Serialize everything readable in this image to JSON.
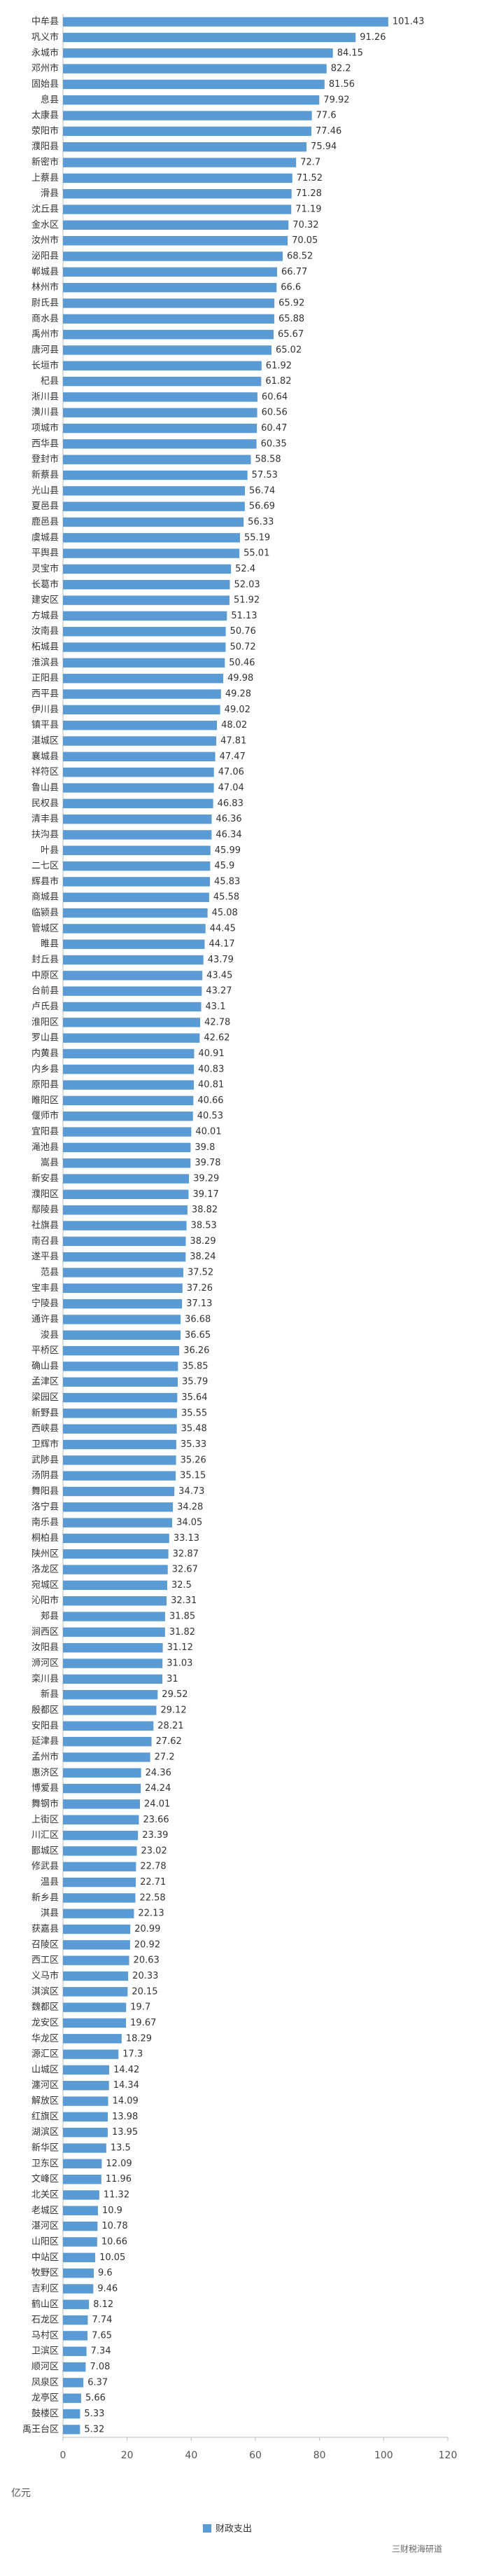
{
  "chart_data": {
    "type": "bar",
    "orientation": "horizontal",
    "categories": [
      "中牟县",
      "巩义市",
      "永城市",
      "邓州市",
      "固始县",
      "息县",
      "太康县",
      "荥阳市",
      "濮阳县",
      "新密市",
      "上蔡县",
      "滑县",
      "沈丘县",
      "金水区",
      "汝州市",
      "泌阳县",
      "郸城县",
      "林州市",
      "尉氏县",
      "商水县",
      "禹州市",
      "唐河县",
      "长垣市",
      "杞县",
      "淅川县",
      "潢川县",
      "项城市",
      "西华县",
      "登封市",
      "新蔡县",
      "光山县",
      "夏邑县",
      "鹿邑县",
      "虞城县",
      "平舆县",
      "灵宝市",
      "长葛市",
      "建安区",
      "方城县",
      "汝南县",
      "柘城县",
      "淮滨县",
      "正阳县",
      "西平县",
      "伊川县",
      "镇平县",
      "湛城区",
      "襄城县",
      "祥符区",
      "鲁山县",
      "民权县",
      "清丰县",
      "扶沟县",
      "叶县",
      "二七区",
      "辉县市",
      "商城县",
      "临颍县",
      "管城区",
      "睢县",
      "封丘县",
      "中原区",
      "台前县",
      "卢氏县",
      "淮阳区",
      "罗山县",
      "内黄县",
      "内乡县",
      "原阳县",
      "睢阳区",
      "偃师市",
      "宜阳县",
      "渑池县",
      "嵩县",
      "新安县",
      "濮阳区",
      "鄢陵县",
      "社旗县",
      "南召县",
      "遂平县",
      "范县",
      "宝丰县",
      "宁陵县",
      "通许县",
      "浚县",
      "平桥区",
      "确山县",
      "孟津区",
      "梁园区",
      "新野县",
      "西峡县",
      "卫辉市",
      "武陟县",
      "汤阴县",
      "舞阳县",
      "洛宁县",
      "南乐县",
      "桐柏县",
      "陕州区",
      "洛龙区",
      "宛城区",
      "沁阳市",
      "郏县",
      "涧西区",
      "汝阳县",
      "浉河区",
      "栾川县",
      "新县",
      "殷都区",
      "安阳县",
      "延津县",
      "孟州市",
      "惠济区",
      "博爱县",
      "舞钢市",
      "上街区",
      "川汇区",
      "郾城区",
      "修武县",
      "温县",
      "新乡县",
      "淇县",
      "获嘉县",
      "召陵区",
      "西工区",
      "义马市",
      "淇滨区",
      "魏都区",
      "龙安区",
      "华龙区",
      "源汇区",
      "山城区",
      "瀍河区",
      "解放区",
      "红旗区",
      "湖滨区",
      "新华区",
      "卫东区",
      "文峰区",
      "北关区",
      "老城区",
      "湛河区",
      "山阳区",
      "中站区",
      "牧野区",
      "吉利区",
      "鹤山区",
      "石龙区",
      "马村区",
      "卫滨区",
      "顺河区",
      "凤泉区",
      "龙亭区",
      "鼓楼区",
      "禹王台区"
    ],
    "series": [
      {
        "name": "财政支出",
        "color": "#5b9bd5",
        "values": [
          101.43,
          91.26,
          84.15,
          82.2,
          81.56,
          79.92,
          77.6,
          77.46,
          75.94,
          72.7,
          71.52,
          71.28,
          71.19,
          70.32,
          70.05,
          68.52,
          66.77,
          66.6,
          65.92,
          65.88,
          65.67,
          65.02,
          61.92,
          61.82,
          60.64,
          60.56,
          60.47,
          60.35,
          58.58,
          57.53,
          56.74,
          56.69,
          56.33,
          55.19,
          55.01,
          52.4,
          52.03,
          51.92,
          51.13,
          50.76,
          50.72,
          50.46,
          49.98,
          49.28,
          49.02,
          48.02,
          47.81,
          47.47,
          47.06,
          47.04,
          46.83,
          46.36,
          46.34,
          45.99,
          45.9,
          45.83,
          45.58,
          45.08,
          44.45,
          44.17,
          43.79,
          43.45,
          43.27,
          43.1,
          42.78,
          42.62,
          40.91,
          40.83,
          40.81,
          40.66,
          40.53,
          40.01,
          39.8,
          39.78,
          39.29,
          39.17,
          38.82,
          38.53,
          38.29,
          38.24,
          37.52,
          37.26,
          37.13,
          36.68,
          36.65,
          36.26,
          35.85,
          35.79,
          35.64,
          35.55,
          35.48,
          35.33,
          35.26,
          35.15,
          34.73,
          34.28,
          34.05,
          33.13,
          32.87,
          32.67,
          32.5,
          32.31,
          31.85,
          31.82,
          31.12,
          31.03,
          31,
          29.52,
          29.12,
          28.21,
          27.62,
          27.2,
          24.36,
          24.24,
          24.01,
          23.66,
          23.39,
          23.02,
          22.78,
          22.71,
          22.58,
          22.13,
          20.99,
          20.92,
          20.63,
          20.33,
          20.15,
          19.7,
          19.67,
          18.29,
          17.3,
          14.42,
          14.34,
          14.09,
          13.98,
          13.95,
          13.5,
          12.09,
          11.96,
          11.32,
          10.9,
          10.78,
          10.66,
          10.05,
          9.6,
          9.46,
          8.12,
          7.74,
          7.65,
          7.34,
          7.08,
          6.37,
          5.66,
          5.33,
          5.32
        ]
      }
    ],
    "xlim": [
      0,
      120
    ],
    "xticks": [
      0,
      20,
      40,
      60,
      80,
      100,
      120
    ],
    "unit_label": "亿元",
    "legend": "bottom",
    "watermark": "三财税海研道"
  }
}
